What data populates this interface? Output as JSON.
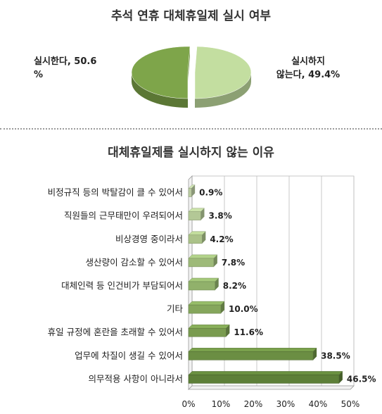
{
  "chart_data": [
    {
      "type": "pie",
      "title": "추석 연휴 대체휴일제 실시 여부",
      "slices": [
        {
          "label": "실시한다, 50.6 %",
          "value": 50.6,
          "color": "#7ea54a"
        },
        {
          "label": "실시하지 않는다, 49.4%",
          "value": 49.4,
          "color": "#c3dea0"
        }
      ],
      "label_a": "실시한다, 50.6\n%",
      "label_b": "실시하지\n않는다, 49.4%"
    },
    {
      "type": "bar",
      "orientation": "horizontal",
      "title": "대체휴일제를 실시하지 않는 이유",
      "categories": [
        "비정규직 등의 박탈감이 클 수 있어서",
        "직원들의 근무태만이 우려되어서",
        "비상경영 중이라서",
        "생산량이 감소할 수 있어서",
        "대체인력 등 인건비가 부담되어서",
        "기타",
        "휴일 규정에 혼란을 초래할 수 있어서",
        "업무에 차질이 생길 수 있어서",
        "의무적용 사항이 아니라서"
      ],
      "values": [
        0.9,
        3.8,
        4.2,
        7.8,
        8.2,
        10.0,
        11.6,
        38.5,
        46.5
      ],
      "value_labels": [
        "0.9%",
        "3.8%",
        "4.2%",
        "7.8%",
        "8.2%",
        "10.0%",
        "11.6%",
        "38.5%",
        "46.5%"
      ],
      "xlim": [
        0,
        50
      ],
      "xticks": [
        0,
        10,
        20,
        30,
        40,
        50
      ],
      "xtick_labels": [
        "0%",
        "10%",
        "20%",
        "30%",
        "40%",
        "50%"
      ],
      "grid": true,
      "colors": [
        "#d4e8b8",
        "#cbe3aa",
        "#c2dd9c",
        "#b3d38a",
        "#a5c97a",
        "#97bd69",
        "#89b05a",
        "#7aa14c",
        "#6a9040"
      ]
    }
  ]
}
